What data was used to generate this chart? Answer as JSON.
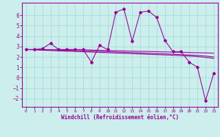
{
  "xlabel": "Windchill (Refroidissement éolien,°C)",
  "background_color": "#cceeed",
  "grid_color": "#aadddb",
  "line_color": "#990099",
  "xlim": [
    -0.5,
    23.5
  ],
  "ylim": [
    -2.8,
    7.2
  ],
  "xticks": [
    0,
    1,
    2,
    3,
    4,
    5,
    6,
    7,
    8,
    9,
    10,
    11,
    12,
    13,
    14,
    15,
    16,
    17,
    18,
    19,
    20,
    21,
    22,
    23
  ],
  "yticks": [
    -2,
    -1,
    0,
    1,
    2,
    3,
    4,
    5,
    6
  ],
  "data_x": [
    0,
    1,
    2,
    3,
    4,
    5,
    6,
    7,
    8,
    9,
    10,
    11,
    12,
    13,
    14,
    15,
    16,
    17,
    18,
    19,
    20,
    21,
    22,
    23
  ],
  "data_y": [
    2.7,
    2.7,
    2.8,
    3.3,
    2.7,
    2.7,
    2.7,
    2.7,
    1.5,
    3.1,
    2.7,
    6.3,
    6.6,
    3.5,
    6.3,
    6.4,
    5.8,
    3.6,
    2.5,
    2.5,
    1.5,
    1.0,
    -2.2,
    0.4
  ],
  "trend1_y": [
    2.7,
    2.7,
    2.7,
    2.7,
    2.7,
    2.7,
    2.7,
    2.68,
    2.65,
    2.63,
    2.61,
    2.59,
    2.57,
    2.55,
    2.53,
    2.52,
    2.5,
    2.48,
    2.46,
    2.44,
    2.42,
    2.4,
    2.38,
    2.36
  ],
  "trend2_y": [
    2.7,
    2.7,
    2.69,
    2.67,
    2.65,
    2.63,
    2.61,
    2.59,
    2.56,
    2.53,
    2.5,
    2.47,
    2.44,
    2.41,
    2.38,
    2.35,
    2.32,
    2.29,
    2.26,
    2.22,
    2.18,
    2.14,
    2.08,
    2.0
  ],
  "trend3_y": [
    2.7,
    2.67,
    2.64,
    2.61,
    2.58,
    2.55,
    2.52,
    2.49,
    2.46,
    2.43,
    2.4,
    2.37,
    2.34,
    2.31,
    2.28,
    2.25,
    2.22,
    2.19,
    2.16,
    2.12,
    2.08,
    2.04,
    1.95,
    1.85
  ]
}
